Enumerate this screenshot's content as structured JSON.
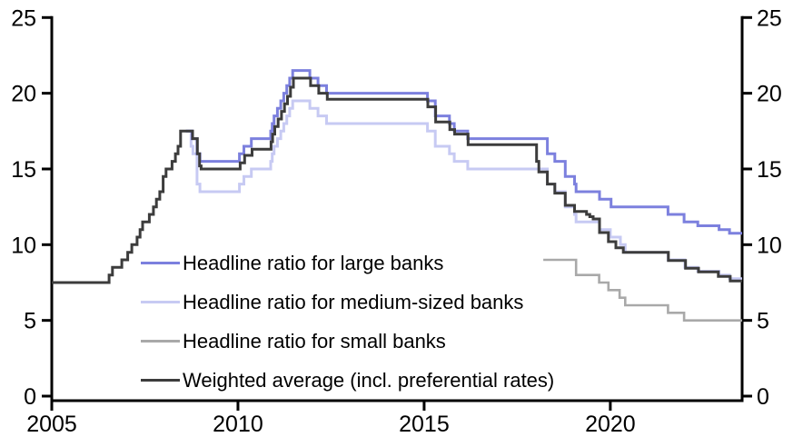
{
  "page": {
    "background": "#ffffff",
    "axis_color": "#000000",
    "text_color": "#000000"
  },
  "chart_data": {
    "type": "line",
    "subtype": "step",
    "title": "",
    "xlabel": "",
    "ylabel": "",
    "grid": false,
    "legend_position": "inside-lower-left",
    "x_axis": {
      "min": 2005,
      "max": 2023.54,
      "ticks": [
        2005,
        2010,
        2015,
        2020
      ]
    },
    "y_axis": {
      "min": 0,
      "max": 25,
      "ticks": [
        0,
        5,
        10,
        15,
        20,
        25
      ],
      "sides": [
        "left",
        "right"
      ]
    },
    "series": [
      {
        "id": "large",
        "name": "Headline ratio for large banks",
        "color": "#7c80de",
        "width": 3,
        "z": 3,
        "points": [
          [
            2008.6,
            17.5
          ],
          [
            2008.77,
            17.0
          ],
          [
            2008.9,
            16.0
          ],
          [
            2008.98,
            15.5
          ],
          [
            2010.04,
            16.0
          ],
          [
            2010.16,
            16.5
          ],
          [
            2010.36,
            17.0
          ],
          [
            2010.88,
            17.5
          ],
          [
            2010.92,
            18.0
          ],
          [
            2010.97,
            18.5
          ],
          [
            2011.06,
            19.0
          ],
          [
            2011.15,
            19.5
          ],
          [
            2011.23,
            20.0
          ],
          [
            2011.31,
            20.5
          ],
          [
            2011.39,
            21.0
          ],
          [
            2011.47,
            21.5
          ],
          [
            2011.93,
            21.0
          ],
          [
            2012.15,
            20.5
          ],
          [
            2012.38,
            20.0
          ],
          [
            2015.09,
            19.5
          ],
          [
            2015.3,
            18.5
          ],
          [
            2015.68,
            18.0
          ],
          [
            2015.81,
            17.5
          ],
          [
            2016.17,
            17.0
          ],
          [
            2018.31,
            16.0
          ],
          [
            2018.51,
            15.5
          ],
          [
            2018.79,
            14.5
          ],
          [
            2019.04,
            14.0
          ],
          [
            2019.08,
            13.5
          ],
          [
            2019.71,
            13.0
          ],
          [
            2020.02,
            12.5
          ],
          [
            2021.55,
            12.0
          ],
          [
            2021.98,
            11.5
          ],
          [
            2022.35,
            11.25
          ],
          [
            2022.92,
            11.0
          ],
          [
            2023.2,
            10.75
          ]
        ]
      },
      {
        "id": "medium",
        "name": "Headline ratio for medium-sized banks",
        "color": "#c7caf3",
        "width": 3,
        "z": 1,
        "points": [
          [
            2008.6,
            17.5
          ],
          [
            2008.74,
            16.5
          ],
          [
            2008.79,
            16.0
          ],
          [
            2008.9,
            14.0
          ],
          [
            2008.98,
            13.5
          ],
          [
            2010.04,
            14.0
          ],
          [
            2010.16,
            14.5
          ],
          [
            2010.36,
            15.0
          ],
          [
            2010.88,
            15.5
          ],
          [
            2010.92,
            16.0
          ],
          [
            2010.97,
            16.5
          ],
          [
            2011.06,
            17.0
          ],
          [
            2011.15,
            17.5
          ],
          [
            2011.23,
            18.0
          ],
          [
            2011.31,
            18.5
          ],
          [
            2011.39,
            19.0
          ],
          [
            2011.47,
            19.5
          ],
          [
            2011.93,
            19.0
          ],
          [
            2012.15,
            18.5
          ],
          [
            2012.38,
            18.0
          ],
          [
            2015.09,
            17.5
          ],
          [
            2015.3,
            16.5
          ],
          [
            2015.68,
            16.0
          ],
          [
            2015.81,
            15.5
          ],
          [
            2016.17,
            15.0
          ],
          [
            2018.31,
            14.0
          ],
          [
            2018.51,
            13.5
          ],
          [
            2018.79,
            12.5
          ],
          [
            2019.04,
            12.0
          ],
          [
            2019.08,
            11.5
          ],
          [
            2019.71,
            11.0
          ],
          [
            2020.0,
            10.5
          ],
          [
            2020.27,
            10.0
          ],
          [
            2020.4,
            9.5
          ],
          [
            2021.55,
            9.0
          ],
          [
            2022.0,
            8.5
          ],
          [
            2022.35,
            8.25
          ],
          [
            2022.92,
            8.0
          ],
          [
            2023.2,
            7.75
          ]
        ]
      },
      {
        "id": "small",
        "name": "Headline ratio for small banks",
        "color": "#a9a9a9",
        "width": 2.6,
        "z": 2,
        "points": [
          [
            2018.2,
            9.0
          ],
          [
            2019.08,
            8.0
          ],
          [
            2019.7,
            7.5
          ],
          [
            2019.95,
            7.0
          ],
          [
            2020.25,
            6.5
          ],
          [
            2020.4,
            6.0
          ],
          [
            2021.55,
            5.5
          ],
          [
            2021.98,
            5.0
          ]
        ]
      },
      {
        "id": "weighted",
        "name": "Weighted average (incl. preferential rates)",
        "color": "#3c3c3c",
        "width": 3,
        "z": 4,
        "points": [
          [
            2005.0,
            7.5
          ],
          [
            2006.54,
            8.0
          ],
          [
            2006.63,
            8.5
          ],
          [
            2006.88,
            9.0
          ],
          [
            2007.04,
            9.5
          ],
          [
            2007.15,
            10.0
          ],
          [
            2007.29,
            10.5
          ],
          [
            2007.37,
            11.0
          ],
          [
            2007.44,
            11.5
          ],
          [
            2007.62,
            12.0
          ],
          [
            2007.73,
            12.5
          ],
          [
            2007.81,
            13.0
          ],
          [
            2007.9,
            13.5
          ],
          [
            2007.99,
            14.5
          ],
          [
            2008.07,
            15.0
          ],
          [
            2008.23,
            15.5
          ],
          [
            2008.32,
            16.0
          ],
          [
            2008.39,
            16.5
          ],
          [
            2008.46,
            17.5
          ],
          [
            2008.78,
            17.0
          ],
          [
            2008.91,
            16.0
          ],
          [
            2008.97,
            15.2
          ],
          [
            2009.01,
            15.0
          ],
          [
            2010.06,
            15.4
          ],
          [
            2010.18,
            15.9
          ],
          [
            2010.38,
            16.3
          ],
          [
            2010.89,
            16.8
          ],
          [
            2010.93,
            17.3
          ],
          [
            2010.99,
            17.8
          ],
          [
            2011.08,
            18.3
          ],
          [
            2011.17,
            18.8
          ],
          [
            2011.25,
            19.3
          ],
          [
            2011.33,
            19.8
          ],
          [
            2011.41,
            20.4
          ],
          [
            2011.49,
            21.0
          ],
          [
            2011.95,
            20.5
          ],
          [
            2012.17,
            20.0
          ],
          [
            2012.4,
            19.6
          ],
          [
            2015.1,
            19.1
          ],
          [
            2015.31,
            18.1
          ],
          [
            2015.69,
            17.6
          ],
          [
            2015.82,
            17.3
          ],
          [
            2016.18,
            16.6
          ],
          [
            2018.02,
            15.5
          ],
          [
            2018.08,
            14.8
          ],
          [
            2018.31,
            14.0
          ],
          [
            2018.51,
            13.4
          ],
          [
            2018.79,
            12.6
          ],
          [
            2019.04,
            12.2
          ],
          [
            2019.36,
            12.0
          ],
          [
            2019.45,
            11.85
          ],
          [
            2019.54,
            11.7
          ],
          [
            2019.71,
            10.8
          ],
          [
            2019.95,
            10.2
          ],
          [
            2020.15,
            9.8
          ],
          [
            2020.35,
            9.5
          ],
          [
            2021.56,
            8.95
          ],
          [
            2022.02,
            8.45
          ],
          [
            2022.37,
            8.2
          ],
          [
            2022.9,
            7.9
          ],
          [
            2023.22,
            7.6
          ]
        ]
      }
    ]
  }
}
